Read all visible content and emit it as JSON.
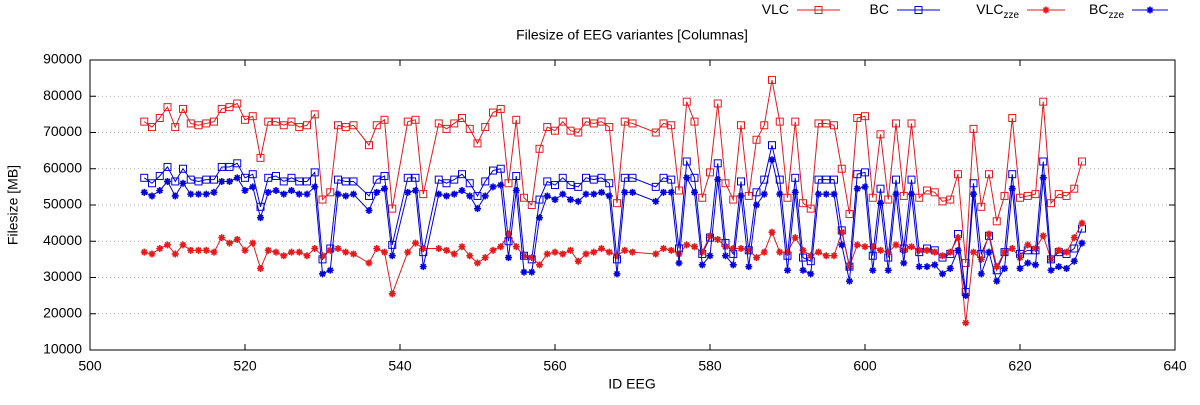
{
  "chart_data": {
    "type": "line",
    "title": "Filesize of EEG variantes [Columnas]",
    "x_label": "ID EEG",
    "y_label": "Filesize [MB]",
    "xlim": [
      500,
      640
    ],
    "xticks": [
      500,
      520,
      540,
      560,
      580,
      600,
      620,
      640
    ],
    "ylim": [
      10000,
      90000
    ],
    "yticks": [
      10000,
      20000,
      30000,
      40000,
      50000,
      60000,
      70000,
      80000,
      90000
    ],
    "grid": true,
    "legend_position": "top",
    "x": [
      507,
      508,
      509,
      510,
      511,
      512,
      513,
      514,
      515,
      516,
      517,
      518,
      519,
      520,
      521,
      522,
      523,
      524,
      525,
      526,
      527,
      528,
      529,
      530,
      531,
      532,
      533,
      534,
      536,
      537,
      538,
      539,
      541,
      542,
      543,
      545,
      546,
      547,
      548,
      549,
      550,
      551,
      552,
      553,
      554,
      555,
      556,
      557,
      558,
      559,
      560,
      561,
      562,
      563,
      564,
      565,
      566,
      567,
      568,
      569,
      570,
      573,
      574,
      575,
      576,
      577,
      578,
      579,
      580,
      581,
      582,
      583,
      584,
      585,
      586,
      587,
      588,
      589,
      590,
      591,
      592,
      593,
      594,
      595,
      596,
      597,
      598,
      599,
      600,
      601,
      602,
      603,
      604,
      605,
      606,
      607,
      608,
      609,
      610,
      611,
      612,
      613,
      614,
      615,
      616,
      617,
      618,
      619,
      620,
      621,
      622,
      623,
      624,
      625,
      626,
      627,
      628
    ],
    "series": [
      {
        "name": "VLC",
        "color": "#e41a1c",
        "marker": "open-square",
        "values": [
          73000,
          71500,
          74000,
          77000,
          71500,
          76500,
          72500,
          72000,
          72500,
          73000,
          76500,
          77000,
          78000,
          73500,
          74500,
          63000,
          73000,
          73000,
          72000,
          73000,
          71500,
          72000,
          75000,
          51500,
          53500,
          72000,
          71500,
          72000,
          66500,
          72000,
          73500,
          49000,
          73000,
          73500,
          53000,
          72500,
          71000,
          72500,
          74000,
          71000,
          67000,
          71500,
          75500,
          76500,
          56000,
          73500,
          52000,
          50000,
          65500,
          71500,
          70500,
          73000,
          70500,
          70000,
          73000,
          72500,
          73000,
          71500,
          50500,
          73000,
          72500,
          70000,
          72500,
          72000,
          54000,
          78500,
          73000,
          52000,
          59000,
          78000,
          56000,
          51500,
          72000,
          52500,
          68000,
          72000,
          84500,
          73000,
          52000,
          73000,
          50500,
          49000,
          72500,
          72500,
          72000,
          60000,
          47500,
          74000,
          74500,
          52000,
          69500,
          51500,
          72500,
          52500,
          72500,
          52000,
          54000,
          53500,
          51000,
          51500,
          58500,
          34000,
          71000,
          49500,
          58500,
          45500,
          52500,
          74000,
          52000,
          52500,
          53000,
          78500,
          50500,
          53000,
          52500,
          54500,
          62000
        ]
      },
      {
        "name": "BC",
        "color": "#0000dd",
        "marker": "open-square",
        "values": [
          57500,
          56000,
          58000,
          60500,
          56500,
          60000,
          57000,
          56500,
          57000,
          57000,
          60500,
          60500,
          61500,
          57500,
          58500,
          49500,
          57500,
          58000,
          56500,
          57500,
          56500,
          56500,
          59000,
          35000,
          38000,
          57000,
          56500,
          56500,
          52500,
          57000,
          58000,
          39000,
          57500,
          57500,
          37000,
          57000,
          56000,
          57000,
          58500,
          56000,
          52500,
          56500,
          59500,
          60000,
          40000,
          58000,
          36000,
          35000,
          51500,
          56500,
          55500,
          57500,
          55500,
          55000,
          57500,
          57000,
          57500,
          56000,
          35000,
          57500,
          57500,
          55000,
          57500,
          57000,
          38000,
          62000,
          57500,
          36500,
          41000,
          61500,
          39500,
          36500,
          56500,
          37500,
          53500,
          57000,
          66500,
          57000,
          36000,
          57500,
          35500,
          34500,
          57000,
          57000,
          57000,
          43000,
          33000,
          58500,
          59000,
          36000,
          54500,
          35500,
          57000,
          38000,
          57000,
          37000,
          38000,
          37500,
          35500,
          36500,
          42000,
          26000,
          56000,
          36500,
          41500,
          32000,
          37000,
          58500,
          36500,
          37500,
          37500,
          62000,
          35000,
          37000,
          36500,
          38000,
          43500
        ]
      },
      {
        "name": "VLC",
        "subscript": "zze",
        "color": "#e41a1c",
        "marker": "star",
        "values": [
          37000,
          36500,
          38000,
          39000,
          36500,
          39000,
          37500,
          37500,
          37500,
          37000,
          41000,
          39500,
          40500,
          37500,
          39500,
          32500,
          37500,
          37000,
          36000,
          37000,
          37000,
          36000,
          38000,
          36000,
          37500,
          38000,
          37000,
          36500,
          34000,
          38000,
          37000,
          25500,
          37000,
          39500,
          38000,
          38000,
          37500,
          36500,
          38500,
          36000,
          34000,
          35500,
          37500,
          38500,
          42000,
          38500,
          36000,
          35500,
          33500,
          36500,
          37000,
          36500,
          37500,
          34500,
          36500,
          37000,
          38000,
          37000,
          36000,
          37500,
          37000,
          36500,
          38000,
          37500,
          36500,
          39000,
          38500,
          37000,
          41500,
          40500,
          38500,
          38000,
          38000,
          37500,
          35500,
          37000,
          42500,
          37000,
          37000,
          41000,
          37500,
          36000,
          37000,
          36000,
          36000,
          42500,
          33000,
          39000,
          38500,
          38500,
          37500,
          37000,
          39000,
          37500,
          38500,
          37500,
          37500,
          37000,
          36000,
          37000,
          41000,
          17500,
          37000,
          35000,
          42000,
          33000,
          37000,
          38000,
          35500,
          39000,
          38000,
          41500,
          35000,
          37500,
          37000,
          41000,
          45000
        ]
      },
      {
        "name": "BC",
        "subscript": "zze",
        "color": "#0000dd",
        "marker": "star",
        "values": [
          53500,
          52500,
          54000,
          56500,
          52500,
          56000,
          53000,
          53000,
          53000,
          53500,
          56500,
          56500,
          57500,
          54000,
          55000,
          46500,
          53500,
          54000,
          53000,
          54000,
          53000,
          53000,
          55000,
          31000,
          32000,
          53000,
          52500,
          53000,
          48500,
          53500,
          54500,
          36000,
          53500,
          54000,
          33000,
          53000,
          52500,
          53000,
          54000,
          52500,
          49000,
          52500,
          55000,
          55500,
          35500,
          54000,
          31500,
          31500,
          46500,
          52500,
          51500,
          53000,
          51500,
          51000,
          53000,
          53000,
          53500,
          52500,
          31000,
          53500,
          53500,
          51000,
          53500,
          53500,
          34000,
          57500,
          53500,
          33500,
          36000,
          57000,
          36000,
          33500,
          52500,
          33000,
          50000,
          53000,
          62500,
          53000,
          32000,
          53500,
          32000,
          31000,
          53000,
          53000,
          53000,
          39000,
          29000,
          54500,
          55000,
          32000,
          50500,
          32000,
          53000,
          34000,
          53000,
          33000,
          33000,
          33500,
          31000,
          32500,
          37500,
          25000,
          53000,
          31000,
          37000,
          29000,
          32500,
          54500,
          32500,
          34000,
          33500,
          57500,
          32000,
          33000,
          32500,
          34500,
          39500
        ]
      }
    ]
  }
}
